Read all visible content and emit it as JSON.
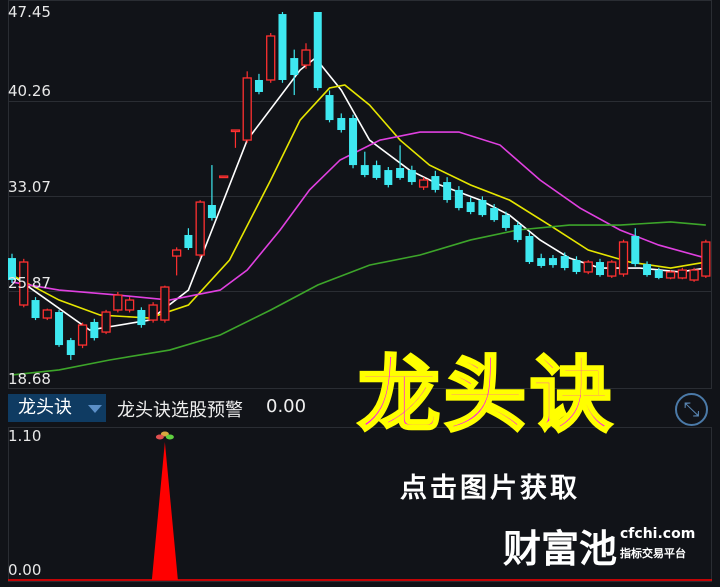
{
  "chart_data": [
    {
      "type": "candlestick",
      "title": "",
      "y_ticks": [
        "47.45",
        "40.26",
        "33.07",
        "25.87",
        "18.68"
      ],
      "ylim": [
        18.68,
        47.45
      ],
      "colors": {
        "up": "#ff3030",
        "down": "#3ee8f0",
        "ma1": "#ffffff",
        "ma2": "#e6e600",
        "ma3": "#e040e0",
        "ma4": "#3da52a"
      },
      "candles": [
        [
          28.16,
          28.5,
          26.2,
          26.44
        ],
        [
          24.48,
          28.1,
          24.3,
          27.85
        ],
        [
          24.87,
          25.1,
          23.3,
          23.46
        ],
        [
          23.46,
          24.2,
          23.3,
          24.09
        ],
        [
          23.93,
          24.1,
          21.2,
          21.34
        ],
        [
          21.73,
          21.9,
          20.17,
          20.56
        ],
        [
          21.34,
          23.1,
          21.1,
          22.91
        ],
        [
          23.15,
          23.4,
          21.7,
          21.89
        ],
        [
          22.36,
          24.1,
          22.2,
          23.93
        ],
        [
          24.09,
          25.5,
          23.9,
          25.26
        ],
        [
          24.09,
          25.1,
          23.9,
          24.87
        ],
        [
          24.09,
          24.3,
          22.7,
          22.91
        ],
        [
          23.3,
          24.7,
          23.1,
          24.48
        ],
        [
          23.3,
          26.0,
          23.1,
          25.89
        ],
        [
          28.32,
          29.0,
          26.8,
          28.79
        ],
        [
          29.97,
          30.5,
          28.8,
          28.95
        ],
        [
          28.4,
          32.7,
          28.2,
          32.55
        ],
        [
          32.32,
          35.45,
          31.1,
          31.3
        ],
        [
          34.59,
          34.6,
          34.55,
          34.59
        ],
        [
          38.2,
          38.2,
          36.8,
          38.2
        ],
        [
          37.41,
          42.8,
          37.2,
          42.28
        ],
        [
          42.12,
          42.6,
          41.0,
          41.18
        ],
        [
          42.12,
          45.8,
          41.9,
          45.57
        ],
        [
          47.29,
          47.45,
          41.9,
          42.12
        ],
        [
          43.84,
          44.5,
          40.94,
          42.51
        ],
        [
          43.29,
          45.0,
          43.0,
          44.47
        ],
        [
          47.45,
          47.45,
          41.3,
          41.49
        ],
        [
          40.94,
          41.3,
          38.8,
          38.98
        ],
        [
          39.14,
          39.5,
          38.0,
          38.2
        ],
        [
          39.14,
          39.4,
          35.2,
          35.45
        ],
        [
          35.45,
          36.5,
          34.5,
          34.67
        ],
        [
          35.45,
          35.8,
          34.3,
          34.44
        ],
        [
          35.06,
          35.3,
          33.7,
          33.89
        ],
        [
          35.22,
          37.0,
          34.3,
          34.44
        ],
        [
          35.06,
          35.4,
          33.9,
          34.12
        ],
        [
          33.73,
          34.5,
          33.5,
          34.28
        ],
        [
          34.59,
          35.0,
          33.3,
          33.5
        ],
        [
          34.12,
          34.5,
          32.5,
          32.71
        ],
        [
          33.5,
          33.8,
          31.9,
          32.08
        ],
        [
          32.55,
          32.9,
          31.6,
          31.77
        ],
        [
          32.71,
          33.0,
          31.4,
          31.53
        ],
        [
          32.08,
          32.4,
          31.0,
          31.14
        ],
        [
          31.53,
          31.8,
          30.3,
          30.52
        ],
        [
          30.75,
          31.0,
          29.4,
          29.58
        ],
        [
          29.89,
          30.2,
          27.7,
          27.85
        ],
        [
          28.16,
          28.5,
          27.4,
          27.54
        ],
        [
          28.16,
          28.4,
          27.4,
          27.61
        ],
        [
          28.32,
          28.6,
          27.2,
          27.38
        ],
        [
          28.01,
          28.3,
          26.9,
          27.07
        ],
        [
          27.07,
          28.0,
          26.9,
          27.85
        ],
        [
          27.85,
          28.1,
          26.7,
          26.83
        ],
        [
          26.75,
          28.0,
          26.6,
          27.85
        ],
        [
          26.91,
          29.6,
          26.7,
          29.42
        ],
        [
          29.89,
          30.5,
          27.5,
          27.69
        ],
        [
          27.69,
          27.9,
          26.7,
          26.83
        ],
        [
          27.22,
          27.4,
          26.5,
          26.6
        ],
        [
          26.6,
          27.2,
          26.5,
          27.07
        ],
        [
          26.6,
          27.4,
          26.5,
          27.22
        ],
        [
          26.44,
          27.4,
          26.3,
          27.22
        ],
        [
          26.75,
          29.6,
          26.6,
          29.42
        ]
      ],
      "moving_averages": [
        {
          "color_key": "ma1",
          "points": [
            [
              0,
              26.83
            ],
            [
              6.6,
              22.52
            ],
            [
              11.7,
              23.3
            ],
            [
              15,
              25.65
            ],
            [
              20,
              37.41
            ],
            [
              24.5,
              42.9
            ],
            [
              25.8,
              43.84
            ],
            [
              28,
              41.33
            ],
            [
              30.4,
              37.41
            ],
            [
              33.8,
              35.06
            ],
            [
              36.4,
              33.89
            ],
            [
              39.8,
              32.71
            ],
            [
              42.3,
              31.53
            ],
            [
              44.9,
              29.58
            ],
            [
              47.4,
              28.16
            ],
            [
              50,
              27.38
            ],
            [
              53.4,
              27.38
            ],
            [
              56.8,
              27.07
            ],
            [
              59,
              27.38
            ]
          ]
        },
        {
          "color_key": "ma2",
          "points": [
            [
              0,
              26.83
            ],
            [
              4,
              24.87
            ],
            [
              7.5,
              23.69
            ],
            [
              11.7,
              23.46
            ],
            [
              15,
              24.48
            ],
            [
              18.5,
              28.01
            ],
            [
              22,
              34.28
            ],
            [
              24.5,
              38.98
            ],
            [
              27,
              41.49
            ],
            [
              28.3,
              41.73
            ],
            [
              30.4,
              40.16
            ],
            [
              33,
              37.41
            ],
            [
              35.5,
              35.45
            ],
            [
              39,
              33.89
            ],
            [
              42.3,
              32.71
            ],
            [
              45.7,
              30.75
            ],
            [
              49,
              28.79
            ],
            [
              52.5,
              27.85
            ],
            [
              56,
              27.38
            ],
            [
              59,
              27.85
            ]
          ]
        },
        {
          "color_key": "ma3",
          "points": [
            [
              0,
              26.28
            ],
            [
              4,
              25.65
            ],
            [
              9,
              25.26
            ],
            [
              13.4,
              24.87
            ],
            [
              17.7,
              25.65
            ],
            [
              20,
              27.22
            ],
            [
              22.8,
              30.36
            ],
            [
              25.3,
              33.5
            ],
            [
              27.9,
              35.85
            ],
            [
              31.3,
              37.41
            ],
            [
              34.7,
              38.04
            ],
            [
              38,
              38.04
            ],
            [
              41.5,
              37.02
            ],
            [
              44.9,
              34.28
            ],
            [
              48.3,
              32.08
            ],
            [
              51.7,
              30.36
            ],
            [
              55,
              29.18
            ],
            [
              59,
              28.16
            ]
          ]
        },
        {
          "color_key": "ma4",
          "points": [
            [
              0,
              19.0
            ],
            [
              4,
              19.39
            ],
            [
              8.3,
              20.17
            ],
            [
              13.4,
              20.95
            ],
            [
              17.7,
              22.13
            ],
            [
              22,
              24.09
            ],
            [
              26,
              26.05
            ],
            [
              30.4,
              27.61
            ],
            [
              34.7,
              28.4
            ],
            [
              39,
              29.58
            ],
            [
              43,
              30.36
            ],
            [
              47.4,
              30.75
            ],
            [
              51.7,
              30.75
            ],
            [
              56,
              30.99
            ],
            [
              59,
              30.75
            ]
          ]
        }
      ]
    },
    {
      "type": "area",
      "y_ticks": [
        "1.10",
        "0.00"
      ],
      "ylim": [
        0,
        1.1
      ],
      "signal_index": 13,
      "signal_value": 1.1,
      "color": "#ff0000"
    }
  ],
  "indicator": {
    "selector_label": "龙头诀",
    "name": "龙头诀选股预警",
    "value": "0.00"
  },
  "overlay": {
    "title": "龙头诀",
    "cta": "点击图片获取",
    "logo": "财富池",
    "logo_url": "cfchi.com",
    "logo_sub": "指标交易平台"
  },
  "icons": {
    "expand": "expand-arrows-icon",
    "dropdown": "triangle-down-icon"
  }
}
